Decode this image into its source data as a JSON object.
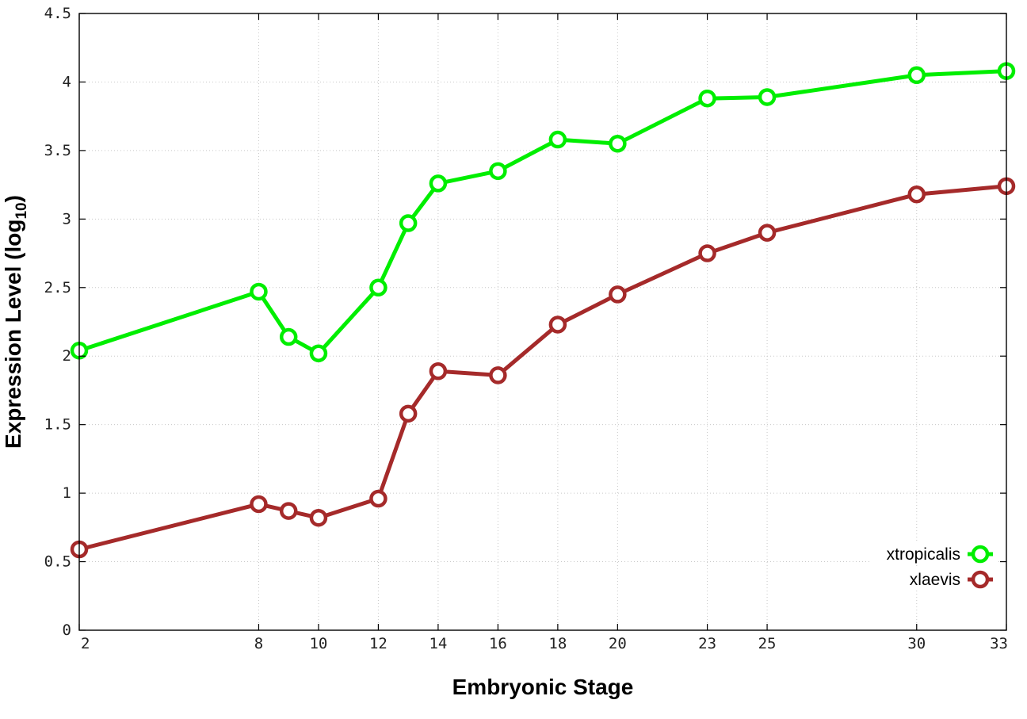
{
  "chart_data": {
    "type": "line",
    "xlabel": "Embryonic Stage",
    "ylabel": "Expression Level (log",
    "ylabel_sub": "10",
    "ylabel_close": ")",
    "x_ticks": [
      "2",
      "8",
      "10",
      "12",
      "14",
      "16",
      "18",
      "20",
      "23",
      "25",
      "30",
      "33"
    ],
    "x": [
      2,
      8,
      9,
      10,
      12,
      13,
      14,
      16,
      18,
      20,
      23,
      25,
      30,
      33
    ],
    "y_ticks": [
      "0",
      "0.5",
      "1",
      "1.5",
      "2",
      "2.5",
      "3",
      "3.5",
      "4",
      "4.5"
    ],
    "ylim": [
      0,
      4.5
    ],
    "xlim": [
      2,
      33
    ],
    "grid": true,
    "legend_position": "bottom-right",
    "series": [
      {
        "name": "xtropicalis",
        "color": "#00ee00",
        "values": [
          2.04,
          2.47,
          2.14,
          2.02,
          2.5,
          2.97,
          3.26,
          3.35,
          3.58,
          3.55,
          3.88,
          3.89,
          4.05,
          4.08
        ]
      },
      {
        "name": "xlaevis",
        "color": "#a52a2a",
        "values": [
          0.59,
          0.92,
          0.87,
          0.82,
          0.96,
          1.58,
          1.89,
          1.86,
          2.23,
          2.45,
          2.75,
          2.9,
          3.18,
          3.24
        ]
      }
    ]
  }
}
